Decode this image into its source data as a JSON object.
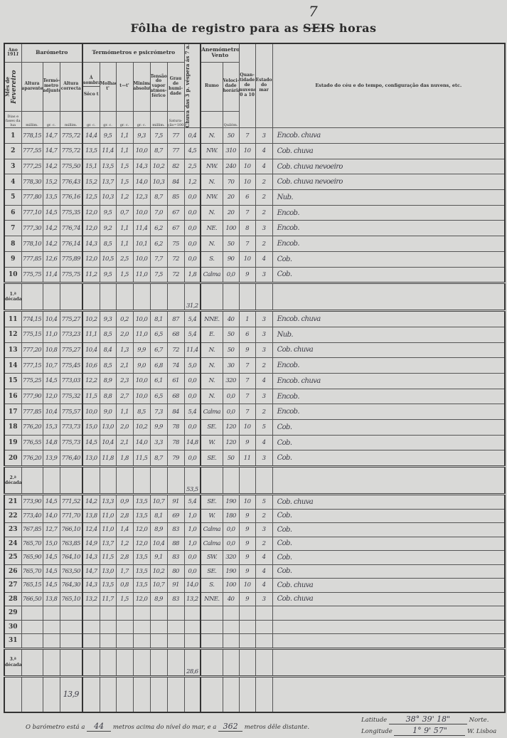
{
  "title": {
    "prefix": "Fôlha de registro para as",
    "struck": "SEIS",
    "handwritten": "7",
    "suffix": "horas"
  },
  "header": {
    "year_label": "Ano",
    "year_value": "191",
    "year_hand": "1",
    "month_label": "Mês de",
    "month_hand": "Fevereiro",
    "days_label": "Dias e fases da lua",
    "barometer": "Barómetro",
    "alt_aparente": "Altura aparente",
    "termometro_adjunto": "Termó-metro adjunto",
    "alt_correcta": "Altura correcta",
    "termometros": "Termómetros e psicrómetro",
    "a_sombra": "Á sombra",
    "seco": "Sêco t",
    "molhado": "Molhado t'",
    "diff": "t—t'",
    "minima": "Minima absoluta",
    "tensao": "Tensão do vapor atmos-férico",
    "humidade": "Grau de humi-dade",
    "chuva": "Chuva das 3 p. véspera ás 7 a.",
    "anemometro": "Anemómetro",
    "vento": "Vento",
    "rumo": "Rumo",
    "velocidade": "Veloci-dade horária",
    "nuvens": "Quan-tidade de nuvens 0 a 10",
    "mar": "Estado do mar",
    "ceu": "Estado do céu e do tempo, configuração das nuvens, etc.",
    "units": [
      "millim.",
      "gr. c.",
      "millim.",
      "gr. c.",
      "gr. c.",
      "gr. c.",
      "gr. c.",
      "millim.",
      "Satura-ção=100",
      "",
      "",
      "Quilóm.",
      "",
      "",
      ""
    ]
  },
  "rows": [
    {
      "day": "1",
      "v": [
        "778,15",
        "14,7",
        "775,72",
        "14,4",
        "9,5",
        "1,1",
        "9,3",
        "7,5",
        "77",
        "0,4",
        "N.",
        "50",
        "7",
        "3",
        "Encob. chuva"
      ]
    },
    {
      "day": "2",
      "v": [
        "777,55",
        "14,7",
        "775,72",
        "13,5",
        "11,4",
        "1,1",
        "10,0",
        "8,7",
        "77",
        "4,5",
        "NW.",
        "310",
        "10",
        "4",
        "Cob. chuva"
      ]
    },
    {
      "day": "3",
      "v": [
        "777,25",
        "14,2",
        "775,50",
        "15,1",
        "13,5",
        "1,5",
        "14,3",
        "10,2",
        "82",
        "2,5",
        "NW.",
        "240",
        "10",
        "4",
        "Cob. chuva nevoeiro"
      ]
    },
    {
      "day": "4",
      "v": [
        "778,30",
        "15,2",
        "776,43",
        "15,2",
        "13,7",
        "1,5",
        "14,0",
        "10,3",
        "84",
        "1,2",
        "N.",
        "70",
        "10",
        "2",
        "Cob. chuva nevoeiro"
      ]
    },
    {
      "day": "5",
      "v": [
        "777,80",
        "13,5",
        "776,16",
        "12,5",
        "10,3",
        "1,2",
        "12,3",
        "8,7",
        "85",
        "0,0",
        "NW.",
        "20",
        "6",
        "2",
        "Nub."
      ]
    },
    {
      "day": "6",
      "v": [
        "777,10",
        "14,5",
        "775,35",
        "12,0",
        "9,5",
        "0,7",
        "10,0",
        "7,0",
        "67",
        "0,0",
        "N.",
        "20",
        "7",
        "2",
        "Encob."
      ]
    },
    {
      "day": "7",
      "v": [
        "777,30",
        "14,2",
        "776,74",
        "12,0",
        "9,2",
        "1,1",
        "11,4",
        "6,2",
        "67",
        "0,0",
        "NE.",
        "100",
        "8",
        "3",
        "Encob."
      ]
    },
    {
      "day": "8",
      "v": [
        "778,10",
        "14,2",
        "776,14",
        "14,3",
        "8,5",
        "1,1",
        "10,1",
        "6,2",
        "75",
        "0,0",
        "N.",
        "50",
        "7",
        "2",
        "Encob."
      ]
    },
    {
      "day": "9",
      "v": [
        "777,85",
        "12,6",
        "775,89",
        "12,0",
        "10,5",
        "2,5",
        "10,0",
        "7,7",
        "72",
        "0,0",
        "S.",
        "90",
        "10",
        "4",
        "Cob."
      ]
    },
    {
      "day": "10",
      "v": [
        "775,75",
        "11,4",
        "775,75",
        "11,2",
        "9,5",
        "1,5",
        "11,0",
        "7,5",
        "72",
        "1,8",
        "Calma",
        "0,0",
        "9",
        "3",
        "Cob."
      ]
    },
    {
      "day": "11",
      "v": [
        "774,15",
        "10,4",
        "775,27",
        "10,2",
        "9,3",
        "0,2",
        "10,0",
        "8,1",
        "87",
        "5,4",
        "NNE.",
        "40",
        "1",
        "3",
        "Encob. chuva"
      ]
    },
    {
      "day": "12",
      "v": [
        "775,15",
        "11,0",
        "773,23",
        "11,1",
        "8,5",
        "2,0",
        "11,0",
        "6,5",
        "68",
        "5,4",
        "E.",
        "50",
        "6",
        "3",
        "Nub."
      ]
    },
    {
      "day": "13",
      "v": [
        "777,20",
        "10,8",
        "775,27",
        "10,4",
        "8,4",
        "1,3",
        "9,9",
        "6,7",
        "72",
        "11,4",
        "N.",
        "50",
        "9",
        "3",
        "Cob. chuva"
      ]
    },
    {
      "day": "14",
      "v": [
        "777,15",
        "10,7",
        "775,45",
        "10,6",
        "8,5",
        "2,1",
        "9,0",
        "6,8",
        "74",
        "5,0",
        "N.",
        "30",
        "7",
        "2",
        "Encob."
      ]
    },
    {
      "day": "15",
      "v": [
        "775,25",
        "14,5",
        "773,03",
        "12,2",
        "8,9",
        "2,3",
        "10,0",
        "6,1",
        "61",
        "0,0",
        "N.",
        "320",
        "7",
        "4",
        "Encob. chuva"
      ]
    },
    {
      "day": "16",
      "v": [
        "777,90",
        "12,0",
        "775,32",
        "11,5",
        "8,8",
        "2,7",
        "10,0",
        "6,5",
        "68",
        "0,0",
        "N.",
        "0,0",
        "7",
        "3",
        "Encob."
      ]
    },
    {
      "day": "17",
      "v": [
        "777,85",
        "10,4",
        "775,57",
        "10,0",
        "9,0",
        "1,1",
        "8,5",
        "7,3",
        "84",
        "5,4",
        "Calma",
        "0,0",
        "7",
        "2",
        "Encob."
      ]
    },
    {
      "day": "18",
      "v": [
        "776,20",
        "15,3",
        "773,73",
        "15,0",
        "13,0",
        "2,0",
        "10,2",
        "9,9",
        "78",
        "0,0",
        "SE.",
        "120",
        "10",
        "5",
        "Cob."
      ]
    },
    {
      "day": "19",
      "v": [
        "776,55",
        "14,8",
        "775,73",
        "14,5",
        "10,4",
        "2,1",
        "14,0",
        "3,3",
        "78",
        "14,8",
        "W.",
        "120",
        "9",
        "4",
        "Cob."
      ]
    },
    {
      "day": "20",
      "v": [
        "776,20",
        "13,9",
        "776,40",
        "13,0",
        "11,8",
        "1,8",
        "11,5",
        "8,7",
        "79",
        "0,0",
        "SE.",
        "50",
        "11",
        "3",
        "Cob."
      ]
    },
    {
      "day": "21",
      "v": [
        "773,90",
        "14,5",
        "771,52",
        "14,2",
        "13,3",
        "0,9",
        "13,5",
        "10,7",
        "91",
        "5,4",
        "SE.",
        "190",
        "10",
        "5",
        "Cob. chuva"
      ]
    },
    {
      "day": "22",
      "v": [
        "773,40",
        "14,0",
        "771,70",
        "13,8",
        "11,0",
        "2,8",
        "13,5",
        "8,1",
        "69",
        "1,0",
        "W.",
        "180",
        "9",
        "2",
        "Cob."
      ]
    },
    {
      "day": "23",
      "v": [
        "767,85",
        "12,7",
        "766,10",
        "12,4",
        "11,0",
        "1,4",
        "12,0",
        "8,9",
        "83",
        "1,0",
        "Calma",
        "0,0",
        "9",
        "3",
        "Cob."
      ]
    },
    {
      "day": "24",
      "v": [
        "765,70",
        "15,0",
        "763,85",
        "14,9",
        "13,7",
        "1,2",
        "12,0",
        "10,4",
        "88",
        "1,0",
        "Calma",
        "0,0",
        "9",
        "2",
        "Cob."
      ]
    },
    {
      "day": "25",
      "v": [
        "765,90",
        "14,5",
        "764,10",
        "14,3",
        "11,5",
        "2,8",
        "13,5",
        "9,1",
        "83",
        "0,0",
        "SW.",
        "320",
        "9",
        "4",
        "Cob."
      ]
    },
    {
      "day": "26",
      "v": [
        "765,70",
        "14,5",
        "763,50",
        "14,7",
        "13,0",
        "1,7",
        "13,5",
        "10,2",
        "80",
        "0,0",
        "SE.",
        "190",
        "9",
        "4",
        "Cob."
      ]
    },
    {
      "day": "27",
      "v": [
        "765,15",
        "14,5",
        "764,30",
        "14,3",
        "13,5",
        "0,8",
        "13,5",
        "10,7",
        "91",
        "14,0",
        "S.",
        "100",
        "10",
        "4",
        "Cob. chuva"
      ]
    },
    {
      "day": "28",
      "v": [
        "766,50",
        "13,8",
        "765,10",
        "13,2",
        "11,7",
        "1,5",
        "12,0",
        "8,9",
        "83",
        "13,2",
        "NNE.",
        "40",
        "9",
        "3",
        "Cob. chuva"
      ]
    },
    {
      "day": "29",
      "v": []
    },
    {
      "day": "30",
      "v": []
    },
    {
      "day": "31",
      "v": []
    }
  ],
  "decades": [
    {
      "label": "1.ª década",
      "chuva": "31,2"
    },
    {
      "label": "2.ª década",
      "chuva": "53,5"
    },
    {
      "label": "3.ª década",
      "chuva": "28,6"
    }
  ],
  "totals": {
    "alt_correcta": "13,9"
  },
  "footer": {
    "text1": "O barómetro está a",
    "height_value": "44",
    "text2": "metros acima do nível do mar, e a",
    "distance_value": "362",
    "text3": "metros dêle distante.",
    "lat_label": "Latitude",
    "lat_deg": "38°",
    "lat_min": "39'",
    "lat_sec": "18\"",
    "lat_dir": "Norte.",
    "lon_label": "Longitude",
    "lon_deg": "1°",
    "lon_min": "9'",
    "lon_sec": "57\"",
    "lon_dir": "W. Lisboa"
  }
}
